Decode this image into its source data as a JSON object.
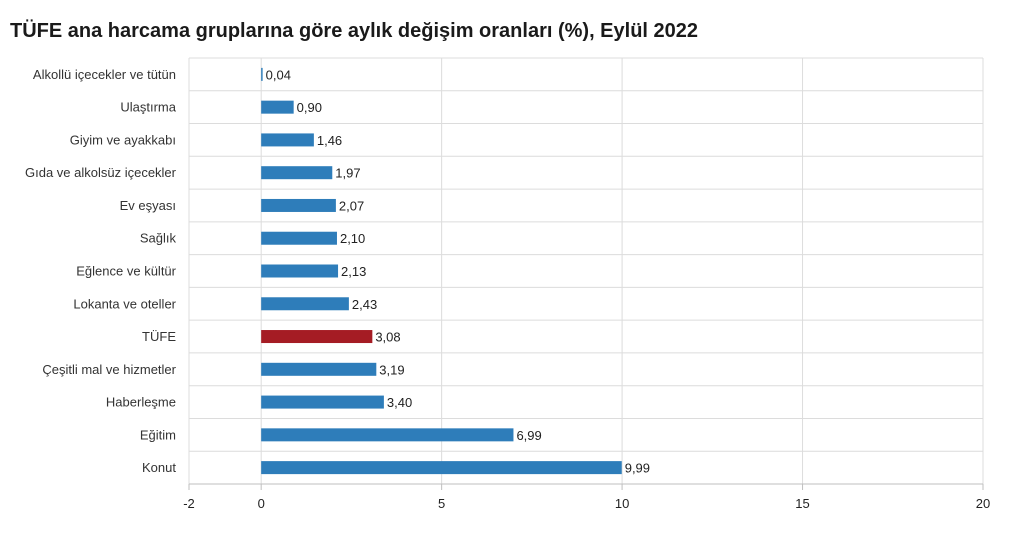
{
  "chart_data": {
    "type": "bar",
    "orientation": "horizontal",
    "title": "TÜFE ana harcama gruplarına göre aylık değişim oranları (%), Eylül 2022",
    "categories": [
      "Alkollü içecekler ve tütün",
      "Ulaştırma",
      "Giyim ve ayakkabı",
      "Gıda ve alkolsüz içecekler",
      "Ev eşyası",
      "Sağlık",
      "Eğlence ve kültür",
      "Lokanta ve oteller",
      "TÜFE",
      "Çeşitli mal ve hizmetler",
      "Haberleşme",
      "Eğitim",
      "Konut"
    ],
    "values": [
      0.04,
      0.9,
      1.46,
      1.97,
      2.07,
      2.1,
      2.13,
      2.43,
      3.08,
      3.19,
      3.4,
      6.99,
      9.99
    ],
    "value_labels": [
      "0,04",
      "0,90",
      "1,46",
      "1,97",
      "2,07",
      "2,10",
      "2,13",
      "2,43",
      "3,08",
      "3,19",
      "3,40",
      "6,99",
      "9,99"
    ],
    "xlim": [
      -2,
      20
    ],
    "xticks": [
      -2,
      0,
      5,
      10,
      15,
      20
    ],
    "xtick_labels": [
      "-2",
      "0",
      "5",
      "10",
      "15",
      "20"
    ],
    "grid": true,
    "legend": "none",
    "colors": {
      "bar": "#2e7dba",
      "highlight": "#a51c24",
      "grid": "#dcdcdc",
      "axis": "#bfbfbf"
    },
    "highlight_category": "TÜFE"
  }
}
